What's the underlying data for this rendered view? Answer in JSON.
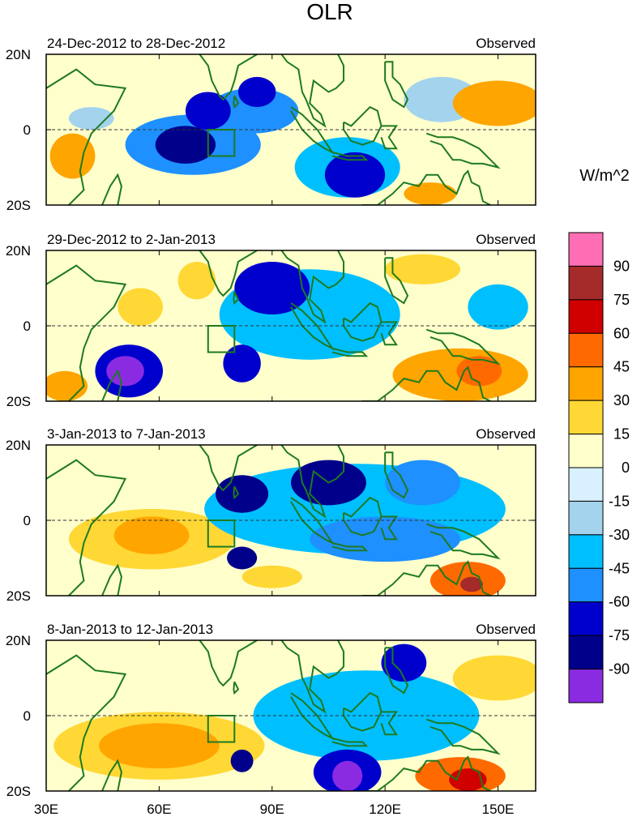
{
  "chart_data": {
    "type": "heatmap",
    "title": "OLR",
    "units": "W/m^2",
    "colorbar": {
      "colors": [
        "#8a2be2",
        "#00008b",
        "#0000cd",
        "#1e90ff",
        "#00bfff",
        "#a4d3ee",
        "#d8f0ff",
        "#ffffcc",
        "#ffd835",
        "#ffa500",
        "#ff6a00",
        "#d00000",
        "#a52a2a",
        "#ff6eb4"
      ],
      "labels": [
        "-90",
        "-75",
        "-60",
        "-45",
        "-30",
        "-15",
        "0",
        "15",
        "30",
        "45",
        "60",
        "75",
        "90"
      ]
    },
    "xaxis": {
      "range": [
        30,
        160
      ],
      "ticks": [
        30,
        60,
        90,
        120,
        150
      ],
      "tick_labels": [
        "30E",
        "60E",
        "90E",
        "120E",
        "150E"
      ]
    },
    "yaxis": {
      "range": [
        -20,
        20
      ],
      "ticks": [
        20,
        0,
        -20
      ],
      "tick_labels": [
        "20N",
        "0",
        "20S"
      ]
    },
    "box": {
      "lon": [
        73,
        80
      ],
      "lat": [
        -7,
        0
      ]
    },
    "panels": [
      {
        "period": "24-Dec-2012 to 28-Dec-2012",
        "label": "Observed",
        "anomalies": [
          {
            "lon": 69,
            "lat": -4,
            "rx": 18,
            "ry": 8,
            "value": -45
          },
          {
            "lon": 67,
            "lat": -4,
            "rx": 8,
            "ry": 5,
            "value": -75
          },
          {
            "lon": 73,
            "lat": 5,
            "rx": 6,
            "ry": 5,
            "value": -60
          },
          {
            "lon": 85,
            "lat": 5,
            "rx": 12,
            "ry": 6,
            "value": -45
          },
          {
            "lon": 86,
            "lat": 10,
            "rx": 5,
            "ry": 4,
            "value": -60
          },
          {
            "lon": 112,
            "lat": -12,
            "rx": 8,
            "ry": 6,
            "value": -60
          },
          {
            "lon": 110,
            "lat": -10,
            "rx": 14,
            "ry": 8,
            "value": -30
          },
          {
            "lon": 37,
            "lat": -7,
            "rx": 6,
            "ry": 6,
            "value": 30
          },
          {
            "lon": 150,
            "lat": 7,
            "rx": 12,
            "ry": 6,
            "value": 30
          },
          {
            "lon": 132,
            "lat": -17,
            "rx": 7,
            "ry": 3,
            "value": 30
          },
          {
            "lon": 42,
            "lat": 3,
            "rx": 6,
            "ry": 3,
            "value": -15
          },
          {
            "lon": 135,
            "lat": 8,
            "rx": 10,
            "ry": 6,
            "value": -15
          }
        ]
      },
      {
        "period": "29-Dec-2012 to 2-Jan-2013",
        "label": "Observed",
        "anomalies": [
          {
            "lon": 52,
            "lat": -12,
            "rx": 9,
            "ry": 7,
            "value": -60
          },
          {
            "lon": 51,
            "lat": -12,
            "rx": 5,
            "ry": 4,
            "value": -90
          },
          {
            "lon": 90,
            "lat": 10,
            "rx": 10,
            "ry": 7,
            "value": -60
          },
          {
            "lon": 82,
            "lat": -10,
            "rx": 5,
            "ry": 5,
            "value": -60
          },
          {
            "lon": 100,
            "lat": 3,
            "rx": 24,
            "ry": 12,
            "value": -30
          },
          {
            "lon": 55,
            "lat": 5,
            "rx": 6,
            "ry": 5,
            "value": 15
          },
          {
            "lon": 70,
            "lat": 12,
            "rx": 5,
            "ry": 5,
            "value": 15
          },
          {
            "lon": 140,
            "lat": -13,
            "rx": 18,
            "ry": 7,
            "value": 30
          },
          {
            "lon": 145,
            "lat": -12,
            "rx": 6,
            "ry": 4,
            "value": 45
          },
          {
            "lon": 130,
            "lat": 15,
            "rx": 10,
            "ry": 4,
            "value": 15
          },
          {
            "lon": 150,
            "lat": 5,
            "rx": 8,
            "ry": 6,
            "value": -30
          },
          {
            "lon": 35,
            "lat": -16,
            "rx": 6,
            "ry": 4,
            "value": 30
          }
        ]
      },
      {
        "period": "3-Jan-2013 to 7-Jan-2013",
        "label": "Observed",
        "anomalies": [
          {
            "lon": 82,
            "lat": 7,
            "rx": 7,
            "ry": 5,
            "value": -75
          },
          {
            "lon": 105,
            "lat": 10,
            "rx": 10,
            "ry": 6,
            "value": -75
          },
          {
            "lon": 112,
            "lat": 3,
            "rx": 40,
            "ry": 12,
            "value": -30
          },
          {
            "lon": 120,
            "lat": -5,
            "rx": 20,
            "ry": 6,
            "value": -45
          },
          {
            "lon": 130,
            "lat": 10,
            "rx": 10,
            "ry": 6,
            "value": -45
          },
          {
            "lon": 82,
            "lat": -10,
            "rx": 4,
            "ry": 3,
            "value": -75
          },
          {
            "lon": 58,
            "lat": -5,
            "rx": 22,
            "ry": 8,
            "value": 15
          },
          {
            "lon": 58,
            "lat": -4,
            "rx": 10,
            "ry": 5,
            "value": 30
          },
          {
            "lon": 142,
            "lat": -16,
            "rx": 10,
            "ry": 5,
            "value": 45
          },
          {
            "lon": 143,
            "lat": -17,
            "rx": 3,
            "ry": 2,
            "value": 75
          },
          {
            "lon": 90,
            "lat": -15,
            "rx": 8,
            "ry": 3,
            "value": 15
          }
        ]
      },
      {
        "period": "8-Jan-2013 to 12-Jan-2013",
        "label": "Observed",
        "anomalies": [
          {
            "lon": 60,
            "lat": -8,
            "rx": 28,
            "ry": 9,
            "value": 15
          },
          {
            "lon": 60,
            "lat": -8,
            "rx": 16,
            "ry": 6,
            "value": 30
          },
          {
            "lon": 110,
            "lat": -15,
            "rx": 9,
            "ry": 6,
            "value": -60
          },
          {
            "lon": 110,
            "lat": -16,
            "rx": 4,
            "ry": 4,
            "value": -90
          },
          {
            "lon": 125,
            "lat": 14,
            "rx": 6,
            "ry": 5,
            "value": -60
          },
          {
            "lon": 115,
            "lat": 0,
            "rx": 30,
            "ry": 12,
            "value": -30
          },
          {
            "lon": 140,
            "lat": -16,
            "rx": 12,
            "ry": 5,
            "value": 45
          },
          {
            "lon": 142,
            "lat": -17,
            "rx": 5,
            "ry": 3,
            "value": 60
          },
          {
            "lon": 150,
            "lat": 10,
            "rx": 12,
            "ry": 6,
            "value": 15
          },
          {
            "lon": 82,
            "lat": -12,
            "rx": 3,
            "ry": 3,
            "value": -75
          }
        ]
      }
    ]
  }
}
